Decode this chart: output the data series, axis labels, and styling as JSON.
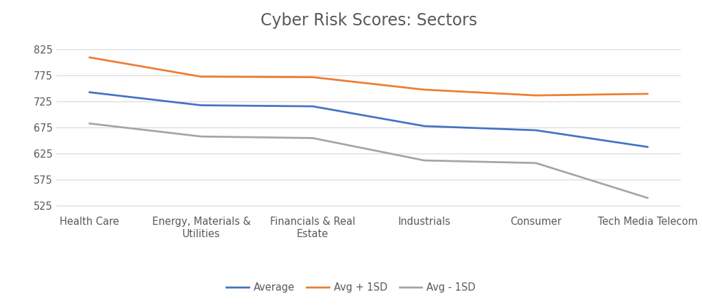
{
  "title": "Cyber Risk Scores: Sectors",
  "categories": [
    "Health Care",
    "Energy, Materials &\nUtilities",
    "Financials & Real\nEstate",
    "Industrials",
    "Consumer",
    "Tech Media Telecom"
  ],
  "average": [
    743,
    718,
    716,
    678,
    670,
    638
  ],
  "avg_plus_1sd": [
    810,
    773,
    772,
    748,
    737,
    740
  ],
  "avg_minus_1sd": [
    683,
    658,
    655,
    612,
    607,
    540
  ],
  "line_colors": {
    "average": "#4472C4",
    "avg_plus_1sd": "#ED7D31",
    "avg_minus_1sd": "#A5A5A5"
  },
  "legend_labels": [
    "Average",
    "Avg + 1SD",
    "Avg - 1SD"
  ],
  "ylim": [
    510,
    850
  ],
  "yticks": [
    525,
    575,
    625,
    675,
    725,
    775,
    825
  ],
  "linewidth": 2.0,
  "background_color": "#ffffff",
  "grid_color": "#d8d8d8",
  "title_color": "#595959",
  "label_color": "#595959",
  "title_fontsize": 17,
  "tick_fontsize": 10.5,
  "legend_fontsize": 10.5
}
